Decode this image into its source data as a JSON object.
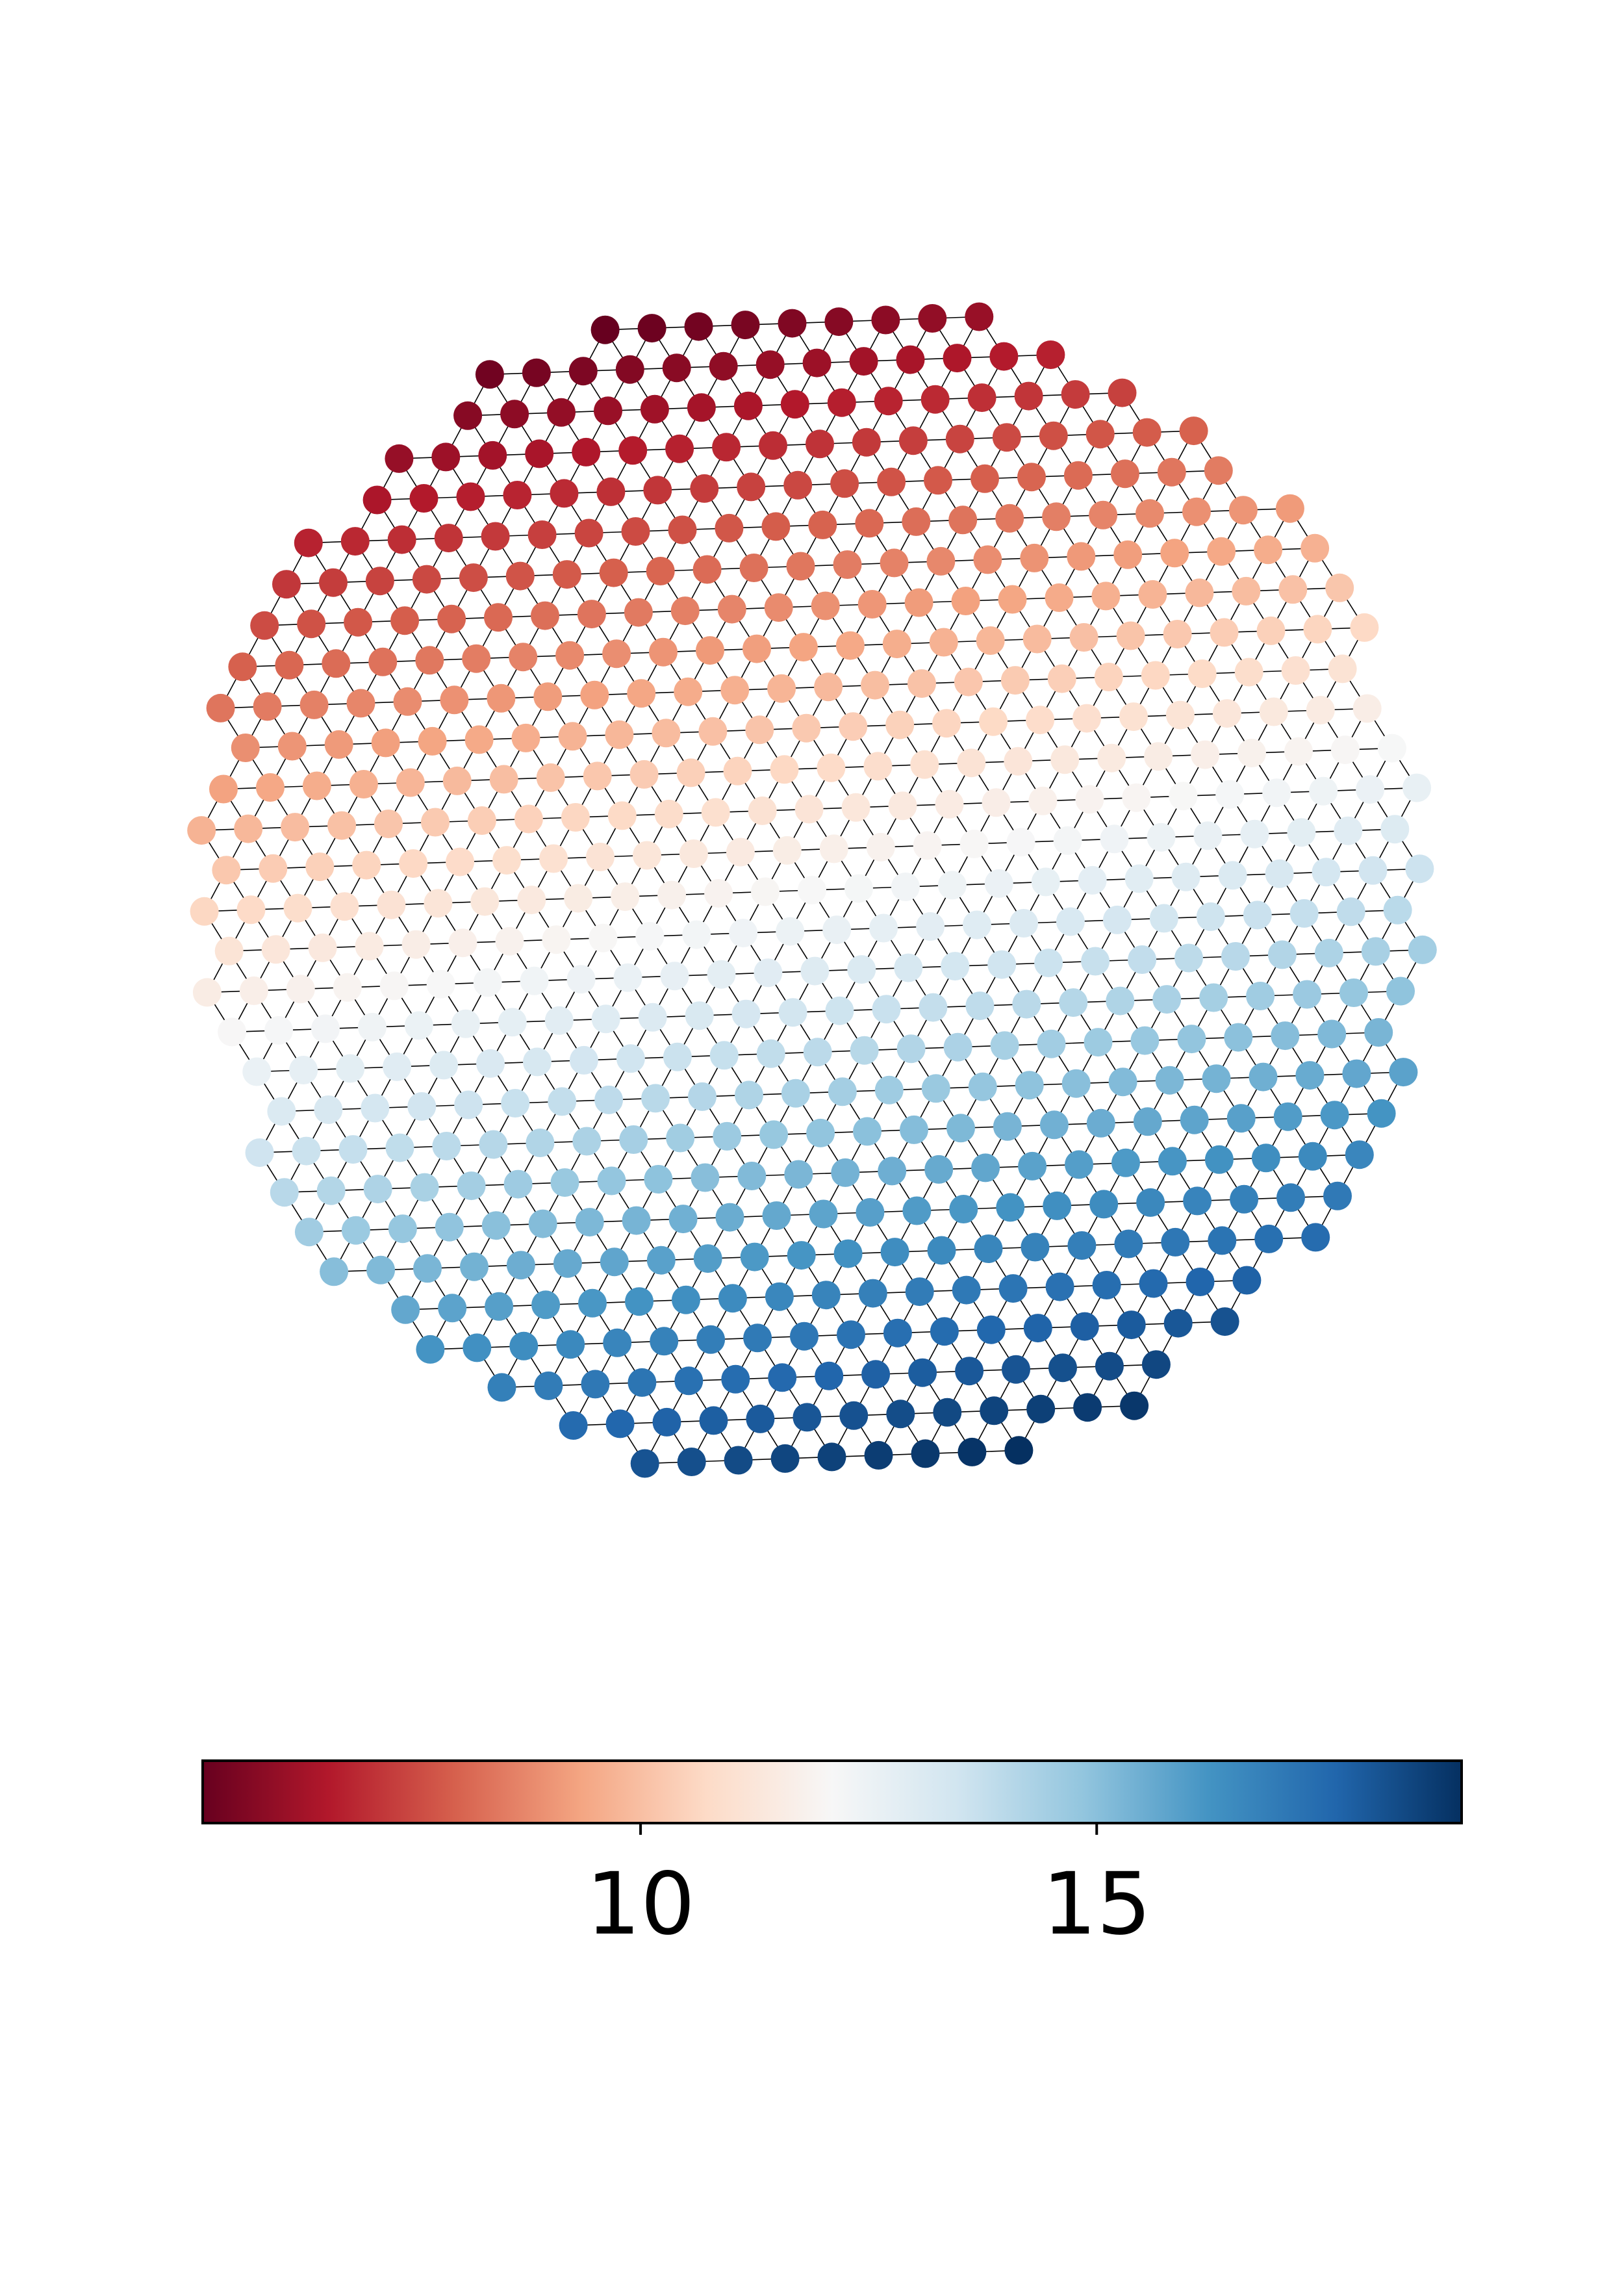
{
  "chart_data": {
    "type": "scatter",
    "description_kind": "triangulated node mesh colored by value",
    "colormap": "RdBu",
    "colormap_stops": [
      "#67001f",
      "#b2182b",
      "#d6604d",
      "#f4a582",
      "#fddbc7",
      "#f7f7f7",
      "#d1e5f0",
      "#92c5de",
      "#4393c3",
      "#2166ac",
      "#053061"
    ],
    "edge_color": "#000000",
    "node_data": {
      "value_range": [
        5.2,
        19.0
      ],
      "gradient_direction_deg": 76,
      "node_count_estimate": 500,
      "top_row_value": 5.2,
      "bottom_row_value": 19.0,
      "neutral_value": 12.0
    },
    "colorbar": {
      "orientation": "horizontal",
      "min": 5.2,
      "max": 19.0,
      "ticks": [
        10,
        15
      ],
      "tick_labels": [
        "10",
        "15"
      ]
    },
    "title": "",
    "xlabel": "",
    "ylabel": "",
    "grid": false,
    "axes_visible": false
  }
}
